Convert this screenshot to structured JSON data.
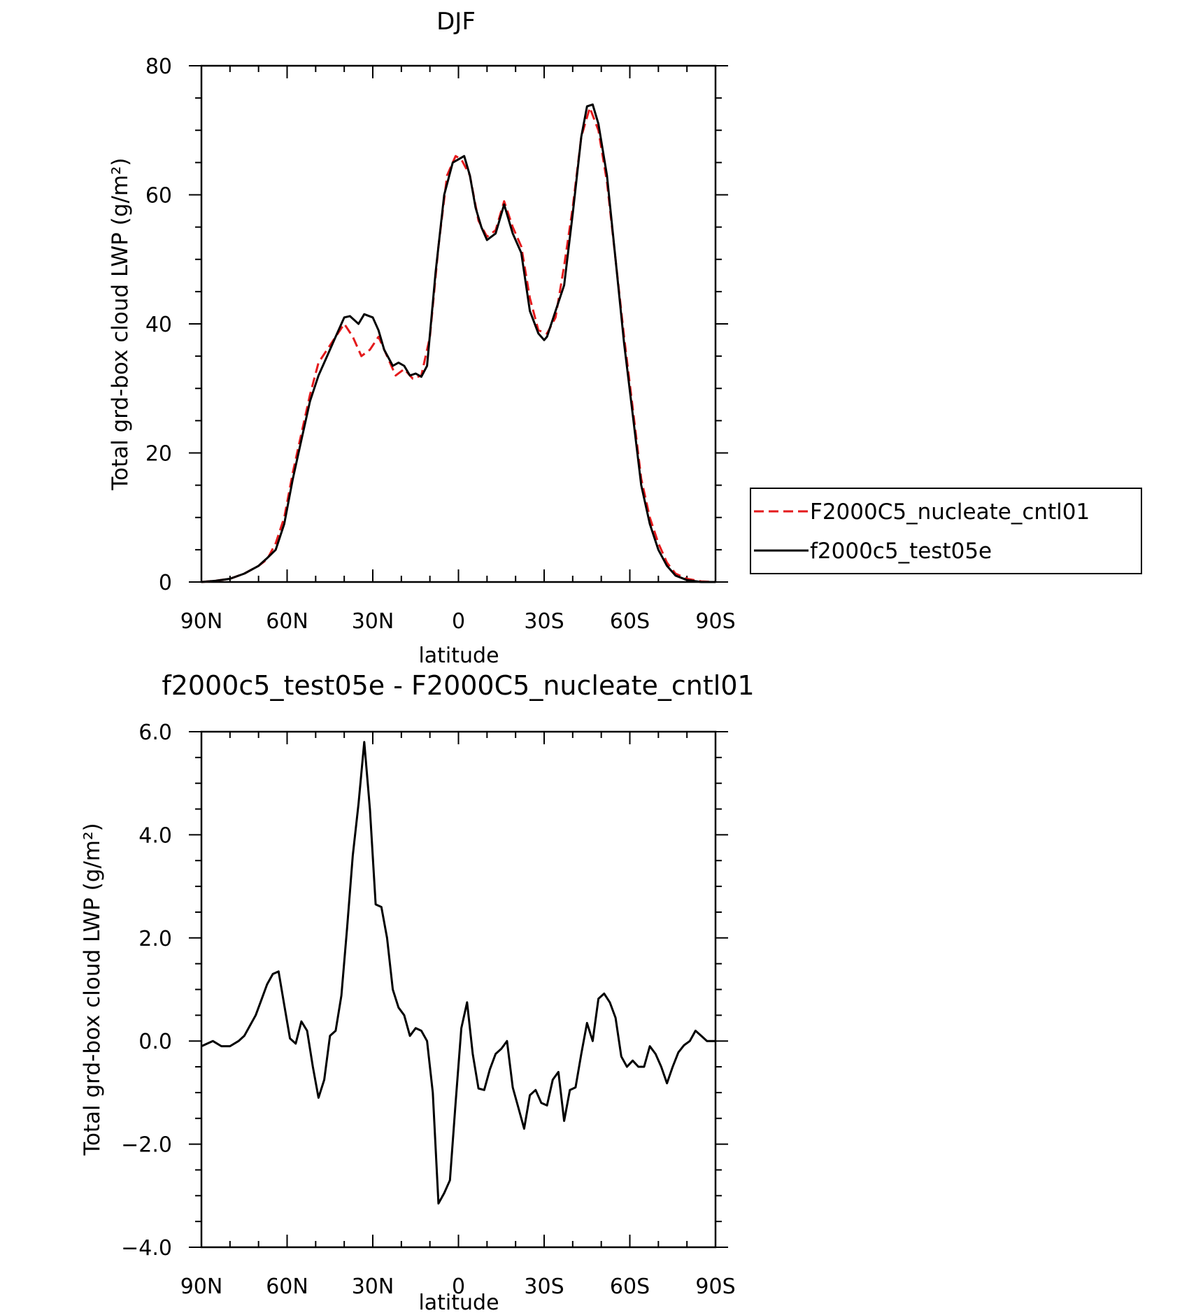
{
  "chart_data": [
    {
      "type": "line",
      "title": "DJF",
      "xlabel": "latitude",
      "ylabel": "Total grd-box cloud LWP (g/m²)",
      "xlim": [
        -90,
        90
      ],
      "ylim": [
        0,
        80
      ],
      "x_ticks": [
        -90,
        -60,
        -30,
        0,
        30,
        60,
        90
      ],
      "x_tick_labels": [
        "90N",
        "60N",
        "30N",
        "0",
        "30S",
        "60S",
        "90S"
      ],
      "y_ticks": [
        0,
        20,
        40,
        60,
        80
      ],
      "y_tick_labels": [
        "0",
        "20",
        "40",
        "60",
        "80"
      ],
      "grid": false,
      "legend": "right",
      "series": [
        {
          "name": "F2000C5_nucleate_cntl01",
          "color": "#e41a1c",
          "dash": "dashed",
          "x": [
            -90,
            -85,
            -80,
            -75,
            -70,
            -67,
            -64,
            -61,
            -58,
            -55,
            -52,
            -49,
            -46,
            -43,
            -40,
            -37,
            -34,
            -31,
            -28,
            -25,
            -22,
            -19,
            -16,
            -13,
            -10,
            -7,
            -4,
            -1,
            1,
            4,
            7,
            10,
            13,
            16,
            19,
            22,
            25,
            28,
            31,
            34,
            37,
            40,
            43,
            46,
            49,
            52,
            55,
            58,
            61,
            64,
            67,
            70,
            73,
            76,
            80,
            85,
            90
          ],
          "y": [
            0,
            0.2,
            0.5,
            1.3,
            2.5,
            3.5,
            6,
            10,
            17,
            23,
            29,
            34,
            36,
            38,
            40,
            38,
            35,
            36,
            38,
            35,
            32,
            33,
            31.5,
            32,
            38,
            52,
            63,
            66,
            65.5,
            63,
            56,
            53.5,
            54.5,
            59,
            55,
            52,
            44,
            39,
            38.5,
            41,
            49,
            58,
            69,
            73.5,
            70,
            62,
            50,
            38,
            27,
            16,
            10,
            6,
            3,
            1.3,
            0.5,
            0.1,
            0
          ]
        },
        {
          "name": "f2000c5_test05e",
          "color": "#000000",
          "dash": "solid",
          "x": [
            -90,
            -85,
            -80,
            -75,
            -70,
            -67,
            -64,
            -61,
            -58,
            -55,
            -52,
            -49,
            -46,
            -43,
            -40,
            -38,
            -35,
            -33,
            -30,
            -28,
            -26,
            -23,
            -21,
            -19,
            -17,
            -15,
            -13,
            -11,
            -8,
            -5,
            -2,
            0,
            2,
            4,
            6,
            8,
            10,
            13,
            16,
            19,
            22,
            25,
            28,
            30,
            31,
            34,
            37,
            40,
            43,
            45,
            47,
            49,
            52,
            55,
            58,
            61,
            64,
            67,
            70,
            73,
            76,
            80,
            85,
            90
          ],
          "y": [
            0,
            0.2,
            0.5,
            1.3,
            2.5,
            3.7,
            5,
            9,
            16,
            22,
            28,
            32,
            35,
            38,
            41,
            41.2,
            40,
            41.5,
            41,
            39,
            36,
            33.5,
            34,
            33.5,
            32,
            32.3,
            31.8,
            33.5,
            48,
            60,
            65,
            65.5,
            66,
            63,
            58,
            55,
            53,
            54,
            58.5,
            54,
            51,
            42,
            38.5,
            37.5,
            38,
            42,
            46,
            57,
            69,
            73.7,
            74,
            71,
            63,
            50,
            37,
            26,
            15,
            9,
            5,
            2.5,
            1,
            0.3,
            0,
            0
          ]
        }
      ]
    },
    {
      "type": "line",
      "title": "f2000c5_test05e - F2000C5_nucleate_cntl01",
      "xlabel": "latitude",
      "ylabel": "Total grd-box cloud LWP (g/m²)",
      "xlim": [
        -90,
        90
      ],
      "ylim": [
        -4,
        6
      ],
      "x_ticks": [
        -90,
        -60,
        -30,
        0,
        30,
        60,
        90
      ],
      "x_tick_labels": [
        "90N",
        "60N",
        "30N",
        "0",
        "30S",
        "60S",
        "90S"
      ],
      "y_ticks": [
        -4,
        -2,
        0,
        2,
        4,
        6
      ],
      "y_tick_labels": [
        "−4.0",
        "−2.0",
        "0.0",
        "2.0",
        "4.0",
        "6.0"
      ],
      "grid": false,
      "series": [
        {
          "color": "#000000",
          "dash": "solid",
          "x": [
            -90,
            -86,
            -83,
            -80,
            -77,
            -75,
            -73,
            -71,
            -69,
            -67,
            -65,
            -63,
            -61,
            -59,
            -57,
            -55,
            -53,
            -51,
            -49,
            -47,
            -45,
            -43,
            -41,
            -39,
            -37,
            -35,
            -33,
            -31,
            -29,
            -27,
            -25,
            -23,
            -21,
            -19,
            -17,
            -15,
            -13,
            -11,
            -9,
            -7,
            -5,
            -3,
            -1,
            1,
            3,
            5,
            7,
            9,
            11,
            13,
            15,
            17,
            19,
            21,
            23,
            25,
            27,
            29,
            31,
            33,
            35,
            37,
            39,
            41,
            43,
            45,
            47,
            49,
            51,
            53,
            55,
            57,
            59,
            61,
            63,
            65,
            67,
            69,
            71,
            73,
            75,
            77,
            79,
            81,
            83,
            85,
            87,
            90
          ],
          "y": [
            -0.1,
            0,
            -0.1,
            -0.1,
            0,
            0.1,
            0.3,
            0.5,
            0.8,
            1.1,
            1.3,
            1.35,
            0.7,
            0.05,
            -0.05,
            0.38,
            0.2,
            -0.5,
            -1.1,
            -0.75,
            0.1,
            0.2,
            0.88,
            2.2,
            3.6,
            4.6,
            5.8,
            4.5,
            2.65,
            2.6,
            2.0,
            1.0,
            0.65,
            0.5,
            0.1,
            0.25,
            0.2,
            0.0,
            -1.0,
            -3.15,
            -2.95,
            -2.7,
            -1.2,
            0.25,
            0.75,
            -0.25,
            -0.92,
            -0.95,
            -0.55,
            -0.25,
            -0.15,
            0.0,
            -0.9,
            -1.3,
            -1.7,
            -1.05,
            -0.95,
            -1.2,
            -1.25,
            -0.75,
            -0.6,
            -1.55,
            -0.95,
            -0.9,
            -0.25,
            0.35,
            0.0,
            0.82,
            0.92,
            0.75,
            0.45,
            -0.3,
            -0.5,
            -0.38,
            -0.5,
            -0.5,
            -0.1,
            -0.25,
            -0.5,
            -0.82,
            -0.5,
            -0.22,
            -0.08,
            0.0,
            0.2,
            0.1,
            0.0,
            0.0
          ]
        }
      ]
    }
  ]
}
